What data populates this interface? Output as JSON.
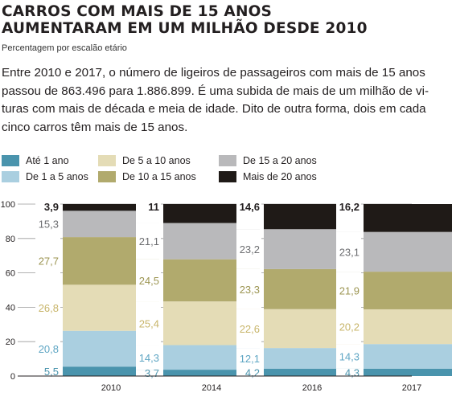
{
  "title_line1": "CARROS COM MAIS DE 15 ANOS",
  "title_line2": "AUMENTARAM EM UM MILHÃO DESDE 2010",
  "subtitle": "Percentagem por escalão etário",
  "body_lines": [
    "Entre 2010 e 2017, o número de ligeiros de passageiros com mais de 15 anos",
    "passou de 863.496 para 1.886.899. É uma subida de mais de um milhão de vi-",
    "turas com mais de década e meia de idade. Dito de outra forma, dois em cada",
    "cinco carros têm mais de 15 anos."
  ],
  "legend": [
    {
      "label": "Até 1 ano",
      "color": "#4a94ad"
    },
    {
      "label": "De 5 a 10 anos",
      "color": "#e4dcb6"
    },
    {
      "label": "De 15 a 20 anos",
      "color": "#b9b9bb"
    },
    {
      "label": "De 1 a 5 anos",
      "color": "#aacfe0"
    },
    {
      "label": "De 10 a 15 anos",
      "color": "#b1aa6d"
    },
    {
      "label": "Mais de 20 anos",
      "color": "#1f1a17"
    }
  ],
  "chart_data": {
    "type": "bar",
    "stacked": true,
    "categories": [
      "2010",
      "2014",
      "2016",
      "2017"
    ],
    "ylim": [
      0,
      100
    ],
    "yticks": [
      0,
      20,
      40,
      60,
      80,
      100
    ],
    "grid": true,
    "series": [
      {
        "name": "Até 1 ano",
        "color": "#4a94ad",
        "label_color": "#4a94ad",
        "values": [
          5.5,
          3.7,
          4.2,
          4.3
        ],
        "labels": [
          "5,5",
          "3,7",
          "4,2",
          "4,3"
        ]
      },
      {
        "name": "De 1 a 5 anos",
        "color": "#aacfe0",
        "label_color": "#5fa6c4",
        "values": [
          20.8,
          14.3,
          12.1,
          14.3
        ],
        "labels": [
          "20,8",
          "14,3",
          "12,1",
          "14,3"
        ]
      },
      {
        "name": "De 5 a 10 anos",
        "color": "#e4dcb6",
        "label_color": "#c8b56a",
        "values": [
          26.8,
          25.4,
          22.6,
          20.2
        ],
        "labels": [
          "26,8",
          "25,4",
          "22,6",
          "20,2"
        ]
      },
      {
        "name": "De 10 a 15 anos",
        "color": "#b1aa6d",
        "label_color": "#9c9552",
        "values": [
          27.7,
          24.5,
          23.3,
          21.9
        ],
        "labels": [
          "27,7",
          "24,5",
          "23,3",
          "21,9"
        ]
      },
      {
        "name": "De 15 a 20 anos",
        "color": "#b9b9bb",
        "label_color": "#6d6e71",
        "values": [
          15.3,
          21.1,
          23.2,
          23.1
        ],
        "labels": [
          "15,3",
          "21,1",
          "23,2",
          "23,1"
        ]
      },
      {
        "name": "Mais de 20 anos",
        "color": "#1f1a17",
        "label_color": "#231f20",
        "values": [
          3.9,
          11,
          14.6,
          16.2
        ],
        "labels": [
          "3,9",
          "11",
          "14,6",
          "16,2"
        ]
      }
    ]
  }
}
